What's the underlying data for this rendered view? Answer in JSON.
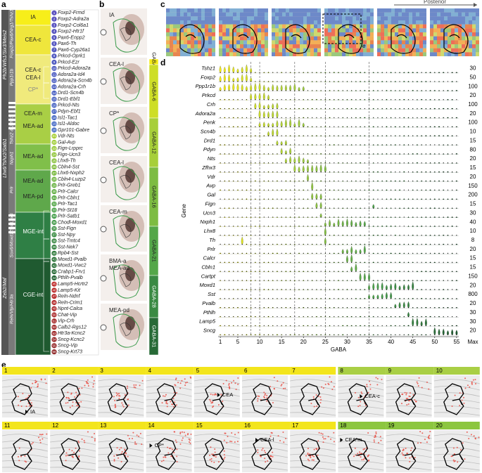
{
  "panel_labels": [
    "a",
    "b",
    "c",
    "d",
    "e"
  ],
  "panel_a": {
    "outer_groups": [
      "Ph2b/Wfs1/Six3/Meis2",
      "Lhx6/Tshz2/Satb1",
      "Zeb2/Maf"
    ],
    "inner_groups": [
      "Foxp2/Pax6/Nrg1/Tshz1",
      "Ppp1r1b",
      "Tshz2 & Zfhx3",
      "Nxph1",
      "Prlr",
      "Sox6/Moxd1/Sst/Lhx6",
      "Reln/Vip/Htr3a"
    ],
    "regions": [
      "IA",
      "CEA-c",
      "CEA-c",
      "CEA-l",
      "CP*",
      "CEA-m",
      "MEA-ad",
      "MEA-ad",
      "MEA-ad",
      "MEA-pd",
      "MGE-int",
      "CGE-int"
    ],
    "clusters": [
      {
        "num": 1,
        "label": "Foxp2-Frmd"
      },
      {
        "num": 2,
        "label": "Foxp2-Adra2a"
      },
      {
        "num": 3,
        "label": "Foxp2-Col6a1"
      },
      {
        "num": 4,
        "label": "Foxp2-Htr1f"
      },
      {
        "num": 5,
        "label": "Pax6-Enpp2"
      },
      {
        "num": 6,
        "label": "Pax6-Th"
      },
      {
        "num": 7,
        "label": "Pax6-Cyp26a1"
      },
      {
        "num": 8,
        "label": "Prkcd-Oprk1"
      },
      {
        "num": 9,
        "label": "Prkcd-Ezr"
      },
      {
        "num": 10,
        "label": "Prkcd-Adora2a"
      },
      {
        "num": 11,
        "label": "Adora2a-Id4"
      },
      {
        "num": 12,
        "label": "Adora2a-Scn4b"
      },
      {
        "num": 13,
        "label": "Adora2a-Crh"
      },
      {
        "num": 14,
        "label": "Drd1-Scn4b"
      },
      {
        "num": 15,
        "label": "Drd1-Ebf1"
      },
      {
        "num": 16,
        "label": "Prkcd-Nts"
      },
      {
        "num": 17,
        "label": "Pdyn-Ebf1"
      },
      {
        "num": 18,
        "label": "Isl1-Tac1"
      },
      {
        "num": 19,
        "label": "Isl1-Aldoc"
      },
      {
        "num": 20,
        "label": "Gpr101-Gabre"
      },
      {
        "num": 21,
        "label": "Vdr-Nts"
      },
      {
        "num": 22,
        "label": "Gal-Avp"
      },
      {
        "num": 23,
        "label": "Fign-Lrpprc"
      },
      {
        "num": 24,
        "label": "Fign-Ucn3"
      },
      {
        "num": 25,
        "label": "Lhx8-Th"
      },
      {
        "num": 26,
        "label": "Cbln4-Sst"
      },
      {
        "num": 27,
        "label": "Lhx6-Nxph2"
      },
      {
        "num": 28,
        "label": "Cbln4-Luzp2"
      },
      {
        "num": 29,
        "label": "Prlr-Greb1"
      },
      {
        "num": 30,
        "label": "Prlr-Calcr"
      },
      {
        "num": 31,
        "label": "Prlr-Cbln1"
      },
      {
        "num": 32,
        "label": "Prlr-Tac1"
      },
      {
        "num": 33,
        "label": "Prlr-St18"
      },
      {
        "num": 34,
        "label": "Prlr-Satb1"
      },
      {
        "num": 35,
        "label": "Chodl-Moxd1"
      },
      {
        "num": 36,
        "label": "Sst-Fign"
      },
      {
        "num": 37,
        "label": "Sst-Npy"
      },
      {
        "num": 38,
        "label": "Sst-Tmtc4"
      },
      {
        "num": 39,
        "label": "Sst-Nek7"
      },
      {
        "num": 40,
        "label": "Rpb4-Sst"
      },
      {
        "num": 41,
        "label": "Moxd1-Pvalb"
      },
      {
        "num": 42,
        "label": "Moxd1-Vwc2"
      },
      {
        "num": 43,
        "label": "Crabp1-Frv1"
      },
      {
        "num": 44,
        "label": "Pthlh-Pvalb"
      },
      {
        "num": 45,
        "label": "Lamp5-Hcrtr2"
      },
      {
        "num": 46,
        "label": "Lamp5-Kit"
      },
      {
        "num": 47,
        "label": "Reln-Ndnf"
      },
      {
        "num": 48,
        "label": "Reln-Crim1"
      },
      {
        "num": 49,
        "label": "Npnt-Calca"
      },
      {
        "num": 50,
        "label": "Chat-Vip"
      },
      {
        "num": 51,
        "label": "Vip-Crh"
      },
      {
        "num": 52,
        "label": "Calb2-Rgs12"
      },
      {
        "num": 53,
        "label": "Htr3a-Kcnc2"
      },
      {
        "num": 54,
        "label": "Sncg-Kcnc2"
      },
      {
        "num": 55,
        "label": "Sncg-Vip"
      },
      {
        "num": 56,
        "label": "Sncg-Krt73"
      }
    ]
  },
  "panel_b": {
    "labels": [
      "IA",
      "CEA-l",
      "CP*",
      "CEA-l",
      "CEA-m",
      "BMA-a",
      "MEA-ad",
      "MEA-pd"
    ]
  },
  "panel_c": {
    "direction": "Posterior",
    "inset": "e"
  },
  "panel_d": {
    "groups": [
      "GABA-4",
      "GABA-6",
      "GABA-12",
      "GABA-16",
      "GABA-21",
      "GABA-28",
      "GABA-31"
    ],
    "genes": [
      {
        "name": "Tshz1",
        "max": 30
      },
      {
        "name": "Foxp2",
        "max": 50
      },
      {
        "name": "Ppp1r1b",
        "max": 100
      },
      {
        "name": "Prkcd",
        "max": 20
      },
      {
        "name": "Crh",
        "max": 100
      },
      {
        "name": "Adora2a",
        "max": 20
      },
      {
        "name": "Penk",
        "max": 100
      },
      {
        "name": "Scn4b",
        "max": 10
      },
      {
        "name": "Drd1",
        "max": 15
      },
      {
        "name": "Pdyn",
        "max": 80
      },
      {
        "name": "Nts",
        "max": 20
      },
      {
        "name": "Zfhx3",
        "max": 15
      },
      {
        "name": "Vdr",
        "max": 20
      },
      {
        "name": "Avp",
        "max": 150
      },
      {
        "name": "Gal",
        "max": 200
      },
      {
        "name": "Fign",
        "max": 15
      },
      {
        "name": "Ucn3",
        "max": 30
      },
      {
        "name": "Nxph1",
        "max": 40
      },
      {
        "name": "Lhx8",
        "max": 10
      },
      {
        "name": "Th",
        "max": 8
      },
      {
        "name": "Prlr",
        "max": 20
      },
      {
        "name": "Calcr",
        "max": 15
      },
      {
        "name": "Cbln1",
        "max": 15
      },
      {
        "name": "Cartpt",
        "max": 150
      },
      {
        "name": "Moxd1",
        "max": 20
      },
      {
        "name": "Sst",
        "max": 800
      },
      {
        "name": "Pvalb",
        "max": 20
      },
      {
        "name": "Pthlh",
        "max": 30
      },
      {
        "name": "Lamp5",
        "max": 30
      },
      {
        "name": "Sncg",
        "max": 20
      }
    ],
    "x_ticks": [
      1,
      5,
      10,
      15,
      20,
      25,
      30,
      35,
      40,
      45,
      50,
      55
    ],
    "x_label": "GABA",
    "y_label": "Gene",
    "max_label": "Max"
  },
  "panel_e": {
    "frames": [
      {
        "num": 1,
        "note": "IA"
      },
      {
        "num": 2
      },
      {
        "num": 3
      },
      {
        "num": 4
      },
      {
        "num": 5,
        "note": "CEA"
      },
      {
        "num": 6
      },
      {
        "num": 7
      },
      {
        "num": 8,
        "note": "CEA-c"
      },
      {
        "num": 9
      },
      {
        "num": 10
      },
      {
        "num": 11
      },
      {
        "num": 12
      },
      {
        "num": 13
      },
      {
        "num": 14,
        "note": "CP*"
      },
      {
        "num": 15
      },
      {
        "num": 16,
        "note": "CEA-l"
      },
      {
        "num": 17
      },
      {
        "num": 18,
        "note": "CEA-m"
      },
      {
        "num": 19
      },
      {
        "num": 20
      }
    ]
  }
}
